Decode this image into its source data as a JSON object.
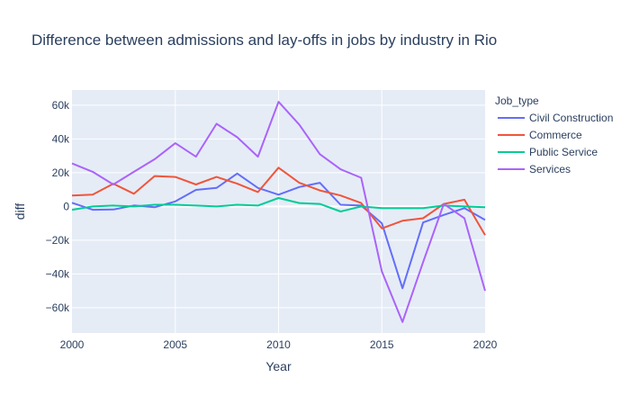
{
  "chart_data": {
    "type": "line",
    "title": "Difference between admissions and lay-offs in jobs by industry in Rio",
    "xlabel": "Year",
    "ylabel": "diff",
    "legend_title": "Job_type",
    "legend_position": "right",
    "grid": true,
    "xlim": [
      2000,
      2020
    ],
    "ylim": [
      -75000,
      69000
    ],
    "x_ticks": [
      2000,
      2005,
      2010,
      2015,
      2020
    ],
    "y_ticks": [
      -60000,
      -40000,
      -20000,
      0,
      20000,
      40000,
      60000
    ],
    "y_tick_labels": [
      "−60k",
      "−40k",
      "−20k",
      "0",
      "20k",
      "40k",
      "60k"
    ],
    "x": [
      2000,
      2001,
      2002,
      2003,
      2004,
      2005,
      2006,
      2007,
      2008,
      2009,
      2010,
      2011,
      2012,
      2013,
      2014,
      2015,
      2016,
      2017,
      2018,
      2019,
      2020
    ],
    "series": [
      {
        "name": "Civil Construction",
        "color": "#636efa",
        "values": [
          2200,
          -2000,
          -1800,
          600,
          -500,
          3000,
          9800,
          11000,
          19500,
          11000,
          7000,
          11500,
          14000,
          1000,
          500,
          -10000,
          -48500,
          -9500,
          -5000,
          -1000,
          -8000
        ]
      },
      {
        "name": "Commerce",
        "color": "#ef553b",
        "values": [
          6500,
          7000,
          13500,
          7500,
          18000,
          17500,
          13000,
          17500,
          13500,
          8500,
          23000,
          14000,
          9500,
          6500,
          2000,
          -13000,
          -8500,
          -7000,
          1500,
          4000,
          -17000
        ]
      },
      {
        "name": "Public Service",
        "color": "#00cc96",
        "values": [
          -2000,
          0,
          500,
          0,
          1000,
          1000,
          500,
          0,
          1000,
          500,
          5000,
          2000,
          1500,
          -3000,
          0,
          -1000,
          -1000,
          -1000,
          500,
          0,
          -500
        ]
      },
      {
        "name": "Services",
        "color": "#ab63fa",
        "values": [
          25500,
          20500,
          13000,
          20500,
          28000,
          37500,
          29500,
          49000,
          41000,
          29500,
          62000,
          48500,
          31000,
          22000,
          17000,
          -38500,
          -68500,
          -33000,
          1500,
          -7000,
          -50000
        ]
      }
    ]
  }
}
